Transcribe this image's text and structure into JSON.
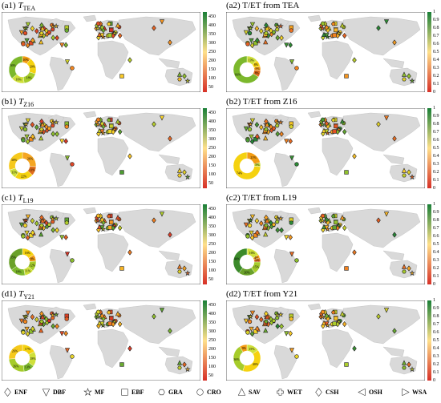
{
  "panels": [
    {
      "title_prefix": "(a1) ",
      "title_var": "T",
      "title_sub": "TEA",
      "title_rest": "",
      "scale": "T",
      "donut": [
        [
          "10%",
          "#f39c12"
        ],
        [
          "20%",
          "#f5d210"
        ],
        [
          "18%",
          "#a6cc2a"
        ],
        [
          "16%",
          "#cfe03a"
        ],
        [
          "36%",
          "#7cb82c"
        ]
      ]
    },
    {
      "title_prefix": "(a2) T/ET from TEA",
      "title_var": "",
      "title_sub": "",
      "title_rest": "",
      "scale": "R",
      "donut": [
        [
          "13%",
          "#cfe03a"
        ],
        [
          "8%",
          "#f5d210"
        ],
        [
          "5%",
          "#f39c12"
        ],
        [
          "8%",
          "#e06d1a"
        ],
        [
          "66%",
          "#7cb82c"
        ]
      ]
    },
    {
      "title_prefix": "(b1) ",
      "title_var": "T",
      "title_sub": "Z16",
      "title_rest": "",
      "scale": "T",
      "donut": [
        [
          "26%",
          "#f5a623"
        ],
        [
          "11%",
          "#e06d1a"
        ],
        [
          "22%",
          "#f5d210"
        ],
        [
          "11%",
          "#cfe03a"
        ],
        [
          "30%",
          "#f6c91b"
        ]
      ]
    },
    {
      "title_prefix": "(b2) T/ET from Z16",
      "title_var": "",
      "title_sub": "",
      "title_rest": "",
      "scale": "R",
      "donut": [
        [
          "21%",
          "#f39c12"
        ],
        [
          "5%",
          "#cfe03a"
        ],
        [
          "74%",
          "#f5d210"
        ]
      ]
    },
    {
      "title_prefix": "(c1) ",
      "title_var": "T",
      "title_sub": "L19",
      "title_rest": "",
      "scale": "T",
      "donut": [
        [
          "16%",
          "#f5d210"
        ],
        [
          "8%",
          "#f39c12"
        ],
        [
          "12%",
          "#a6cc2a"
        ],
        [
          "11%",
          "#cfe03a"
        ],
        [
          "18%",
          "#7cb82c"
        ],
        [
          "35%",
          "#6aa12a"
        ]
      ]
    },
    {
      "title_prefix": "(c2) T/ET from L19",
      "title_var": "",
      "title_sub": "",
      "title_rest": "",
      "scale": "R",
      "donut": [
        [
          "16%",
          "#cfe03a"
        ],
        [
          "4%",
          "#f39c12"
        ],
        [
          "5%",
          "#e06d1a"
        ],
        [
          "15%",
          "#a6cc2a"
        ],
        [
          "20%",
          "#6aa12a"
        ],
        [
          "40%",
          "#3b8a2a"
        ]
      ]
    },
    {
      "title_prefix": "(d1) ",
      "title_var": "T",
      "title_sub": "Y21",
      "title_rest": "",
      "scale": "T",
      "donut": [
        [
          "17%",
          "#f5d210"
        ],
        [
          "18%",
          "#cfe03a"
        ],
        [
          "13%",
          "#7cb82c"
        ],
        [
          "26%",
          "#a6cc2a"
        ],
        [
          "26%",
          "#f6c91b"
        ]
      ]
    },
    {
      "title_prefix": "(d2) T/ET from Y21",
      "title_var": "",
      "title_sub": "",
      "title_rest": "",
      "scale": "R",
      "donut": [
        [
          "15%",
          "#cfe03a"
        ],
        [
          "40%",
          "#f5d210"
        ],
        [
          "36%",
          "#a6cc2a"
        ],
        [
          "9%",
          "#f39c12"
        ]
      ]
    }
  ],
  "scales": {
    "T": [
      "450",
      "400",
      "350",
      "300",
      "250",
      "200",
      "150",
      "100",
      "50"
    ],
    "R": [
      "1",
      "0.9",
      "0.8",
      "0.7",
      "0.6",
      "0.5",
      "0.4",
      "0.3",
      "0.2",
      "0.1",
      "0"
    ]
  },
  "colors": {
    "land": "#d9d9d9",
    "ocean": "#ffffff",
    "low": "#d73027",
    "mid": "#fee08b",
    "high": "#1a7f37",
    "donut_hole": "#ffffff"
  },
  "legend": [
    {
      "shape": "diamond",
      "label": "ENF"
    },
    {
      "shape": "triangle-down",
      "label": "DBF"
    },
    {
      "shape": "star",
      "label": "MF"
    },
    {
      "shape": "square",
      "label": "EBF"
    },
    {
      "shape": "hexagon",
      "label": "GRA"
    },
    {
      "shape": "circle",
      "label": "CRO"
    },
    {
      "shape": "triangle-up",
      "label": "SAV"
    },
    {
      "shape": "cross",
      "label": "WET"
    },
    {
      "shape": "diamond",
      "label": "CSH"
    },
    {
      "shape": "triangle-left",
      "label": "OSH"
    },
    {
      "shape": "triangle-right",
      "label": "WSA"
    }
  ]
}
